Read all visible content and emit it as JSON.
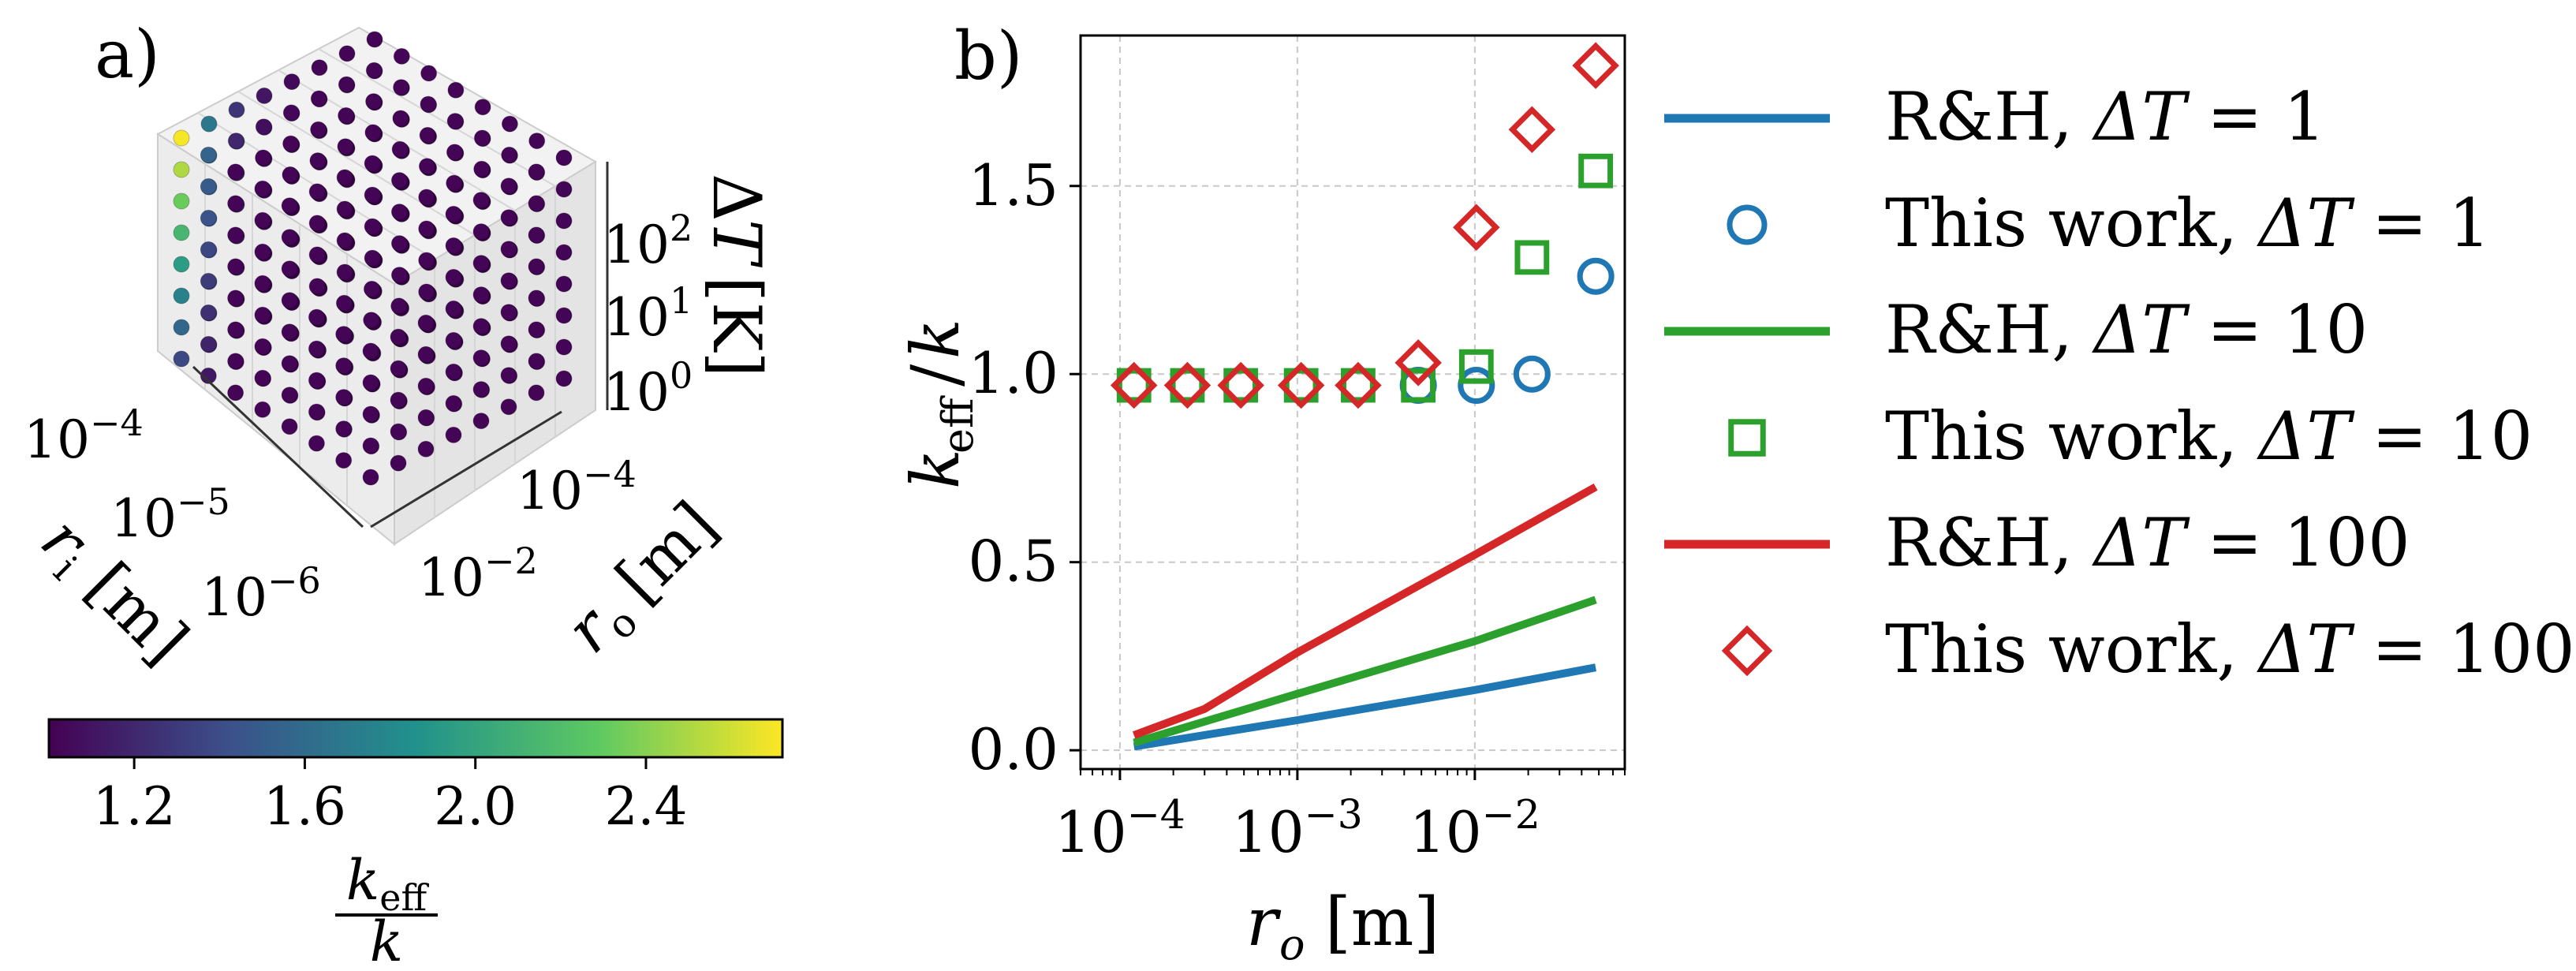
{
  "panel_a": {
    "label": "a)",
    "axes": {
      "ri": {
        "label": "r_i [m]",
        "ticks": [
          "10^-6",
          "10^-5",
          "10^-4"
        ]
      },
      "ro": {
        "label": "r_o [m]",
        "ticks": [
          "10^-2",
          "10^-4"
        ]
      },
      "dT": {
        "label": "ΔT [K]",
        "ticks": [
          "10^0",
          "10^1",
          "10^2"
        ]
      }
    },
    "colorbar": {
      "ticks": [
        "1.2",
        "1.6",
        "2.0",
        "2.4"
      ],
      "min": 1.0,
      "max": 2.72,
      "label_num": "k_eff",
      "label_den": "k",
      "stops": [
        "#440154",
        "#3b528b",
        "#21918c",
        "#5ec962",
        "#fde725"
      ]
    }
  },
  "chart_data": {
    "type": "line",
    "panel_label": "b)",
    "xlabel": "r_o [m]",
    "ylabel": "k_eff / k",
    "xscale": "log",
    "xlim": [
      6e-05,
      0.07
    ],
    "ylim": [
      -0.05,
      1.9
    ],
    "x_ticks": [
      {
        "value": 0.0001,
        "label": "10^-4"
      },
      {
        "value": 0.001,
        "label": "10^-3"
      },
      {
        "value": 0.01,
        "label": "10^-2"
      }
    ],
    "y_ticks": [
      {
        "value": 0.0,
        "label": "0.0"
      },
      {
        "value": 0.5,
        "label": "0.5"
      },
      {
        "value": 1.0,
        "label": "1.0"
      },
      {
        "value": 1.5,
        "label": "1.5"
      }
    ],
    "grid": true,
    "legend_position": "outside-right",
    "series": [
      {
        "name": "R&H, ΔT = 1",
        "kind": "line",
        "color": "#1f77b4",
        "x": [
          0.00012,
          0.001,
          0.01,
          0.048
        ],
        "y": [
          0.01,
          0.08,
          0.16,
          0.22
        ]
      },
      {
        "name": "This work, ΔT = 1",
        "kind": "circle",
        "color": "#1f77b4",
        "x": [
          0.00012,
          0.00024,
          0.00048,
          0.00105,
          0.0022,
          0.0048,
          0.0102,
          0.021,
          0.048
        ],
        "y": [
          0.97,
          0.97,
          0.97,
          0.97,
          0.97,
          0.97,
          0.97,
          1.0,
          1.26
        ]
      },
      {
        "name": "R&H, ΔT = 10",
        "kind": "line",
        "color": "#2ca02c",
        "x": [
          0.00012,
          0.001,
          0.01,
          0.048
        ],
        "y": [
          0.02,
          0.15,
          0.29,
          0.4
        ]
      },
      {
        "name": "This work, ΔT = 10",
        "kind": "square",
        "color": "#2ca02c",
        "x": [
          0.00012,
          0.00024,
          0.00048,
          0.00105,
          0.0022,
          0.0048,
          0.0102,
          0.021,
          0.048
        ],
        "y": [
          0.97,
          0.97,
          0.97,
          0.97,
          0.97,
          0.97,
          1.02,
          1.31,
          1.54
        ]
      },
      {
        "name": "R&H, ΔT = 100",
        "kind": "line",
        "color": "#d62728",
        "x": [
          0.00012,
          0.0003,
          0.001,
          0.01,
          0.048
        ],
        "y": [
          0.04,
          0.11,
          0.26,
          0.52,
          0.7
        ]
      },
      {
        "name": "This work, ΔT = 100",
        "kind": "diamond",
        "color": "#d62728",
        "x": [
          0.00012,
          0.00024,
          0.00048,
          0.00105,
          0.0022,
          0.0048,
          0.0102,
          0.021,
          0.048
        ],
        "y": [
          0.97,
          0.97,
          0.97,
          0.97,
          0.97,
          1.03,
          1.39,
          1.65,
          1.82
        ]
      }
    ]
  },
  "legend": {
    "items": [
      {
        "prefix": "R&H, ",
        "var": "ΔT",
        "eq": " = 1",
        "kind": "line",
        "color": "#1f77b4"
      },
      {
        "prefix": "This work, ",
        "var": "ΔT",
        "eq": " = 1",
        "kind": "circle",
        "color": "#1f77b4"
      },
      {
        "prefix": "R&H, ",
        "var": "ΔT",
        "eq": " = 10",
        "kind": "line",
        "color": "#2ca02c"
      },
      {
        "prefix": "This work, ",
        "var": "ΔT",
        "eq": " = 10",
        "kind": "square",
        "color": "#2ca02c"
      },
      {
        "prefix": "R&H, ",
        "var": "ΔT",
        "eq": " = 100",
        "kind": "line",
        "color": "#d62728"
      },
      {
        "prefix": "This work, ",
        "var": "ΔT",
        "eq": " = 100",
        "kind": "diamond",
        "color": "#d62728"
      }
    ]
  }
}
